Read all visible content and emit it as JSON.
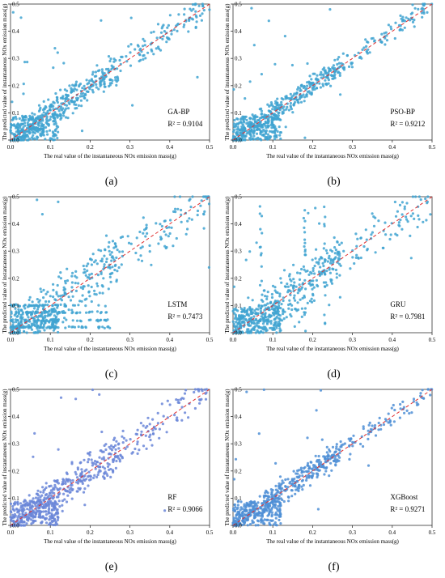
{
  "figure": {
    "panels": [
      {
        "id": "a",
        "label": "(a)",
        "model": "GA-BP",
        "r2_text": "R² = 0.9104"
      },
      {
        "id": "b",
        "label": "(b)",
        "model": "PSO-BP",
        "r2_text": "R² = 0.9212"
      },
      {
        "id": "c",
        "label": "(c)",
        "model": "LSTM",
        "r2_text": "R² = 0.7473"
      },
      {
        "id": "d",
        "label": "(d)",
        "model": "GRU",
        "r2_text": "R² = 0.7981"
      },
      {
        "id": "e",
        "label": "(e)",
        "model": "RF",
        "r2_text": "R² = 0.9066"
      },
      {
        "id": "f",
        "label": "(f)",
        "model": "XGBoost",
        "r2_text": "R² = 0.9271"
      }
    ]
  },
  "chart_data": [
    {
      "type": "scatter",
      "panel": "(a)",
      "model": "GA-BP",
      "r2": 0.9104,
      "xlabel": "The real value of the instantaneous NOx emission mass(g)",
      "ylabel": "The predicted value of instantaneous NOx emission mass(g)",
      "xlim": [
        0,
        0.5
      ],
      "ylim": [
        0,
        0.5
      ],
      "xticks": [
        "0.0",
        "0.1",
        "0.2",
        "0.3",
        "0.4",
        "0.5"
      ],
      "yticks": [
        "0.0",
        "0.1",
        "0.2",
        "0.3",
        "0.4",
        "0.5"
      ],
      "reference_line": "y = x (red dashed)",
      "point_color": "#3fa3d1"
    },
    {
      "type": "scatter",
      "panel": "(b)",
      "model": "PSO-BP",
      "r2": 0.9212,
      "xlabel": "The real value of the instantaneous NOx emission mass(g)",
      "ylabel": "The predicted value of instantaneous NOx emission mass(g)",
      "xlim": [
        0,
        0.5
      ],
      "ylim": [
        0,
        0.5
      ],
      "xticks": [
        "0.0",
        "0.1",
        "0.2",
        "0.3",
        "0.4",
        "0.5"
      ],
      "yticks": [
        "0.0",
        "0.1",
        "0.2",
        "0.3",
        "0.4",
        "0.5"
      ],
      "reference_line": "y = x (red dashed)",
      "point_color": "#3fa3d1"
    },
    {
      "type": "scatter",
      "panel": "(c)",
      "model": "LSTM",
      "r2": 0.7473,
      "xlabel": "The real value of the instantaneous NOx emission mass(g)",
      "ylabel": "The predicted value of instantaneous NOx emission mass(g)",
      "xlim": [
        0,
        0.5
      ],
      "ylim": [
        0,
        0.5
      ],
      "xticks": [
        "0.0",
        "0.1",
        "0.2",
        "0.3",
        "0.4",
        "0.5"
      ],
      "yticks": [
        "0.0",
        "0.1",
        "0.2",
        "0.3",
        "0.4",
        "0.5"
      ],
      "reference_line": "y = x (red dashed)",
      "point_color": "#3fa3d1"
    },
    {
      "type": "scatter",
      "panel": "(d)",
      "model": "GRU",
      "r2": 0.7981,
      "xlabel": "The real value of the instantaneous NOx emission mass(g)",
      "ylabel": "The predicted value of instantaneous NOx emission mass(g)",
      "xlim": [
        0,
        0.5
      ],
      "ylim": [
        0,
        0.5
      ],
      "xticks": [
        "0.0",
        "0.1",
        "0.2",
        "0.3",
        "0.4",
        "0.5"
      ],
      "yticks": [
        "0.0",
        "0.1",
        "0.2",
        "0.3",
        "0.4",
        "0.5"
      ],
      "reference_line": "y = x (red dashed)",
      "point_color": "#3fa3d1"
    },
    {
      "type": "scatter",
      "panel": "(e)",
      "model": "RF",
      "r2": 0.9066,
      "xlabel": "The real value of the instantaneous NOx emission mass(g)",
      "ylabel": "The predicted value of instantaneous NOx emission mass(g)",
      "xlim": [
        0,
        0.5
      ],
      "ylim": [
        0,
        0.5
      ],
      "xticks": [
        "0.0",
        "0.1",
        "0.2",
        "0.3",
        "0.4",
        "0.5"
      ],
      "yticks": [
        "0.0",
        "0.1",
        "0.2",
        "0.3",
        "0.4",
        "0.5"
      ],
      "reference_line": "y = x (red dashed)",
      "point_color": "#6a86d8"
    },
    {
      "type": "scatter",
      "panel": "(f)",
      "model": "XGBoost",
      "r2": 0.9271,
      "xlabel": "The real value of the instantaneous NOx emission mass(g)",
      "ylabel": "The predicted value of instantaneous NOx emission mass(g)",
      "xlim": [
        0,
        0.5
      ],
      "ylim": [
        0,
        0.5
      ],
      "xticks": [
        "0.0",
        "0.1",
        "0.2",
        "0.3",
        "0.4",
        "0.5"
      ],
      "yticks": [
        "0.0",
        "0.1",
        "0.2",
        "0.3",
        "0.4",
        "0.5"
      ],
      "reference_line": "y = x (red dashed)",
      "point_color": "#4f8fd6"
    }
  ]
}
